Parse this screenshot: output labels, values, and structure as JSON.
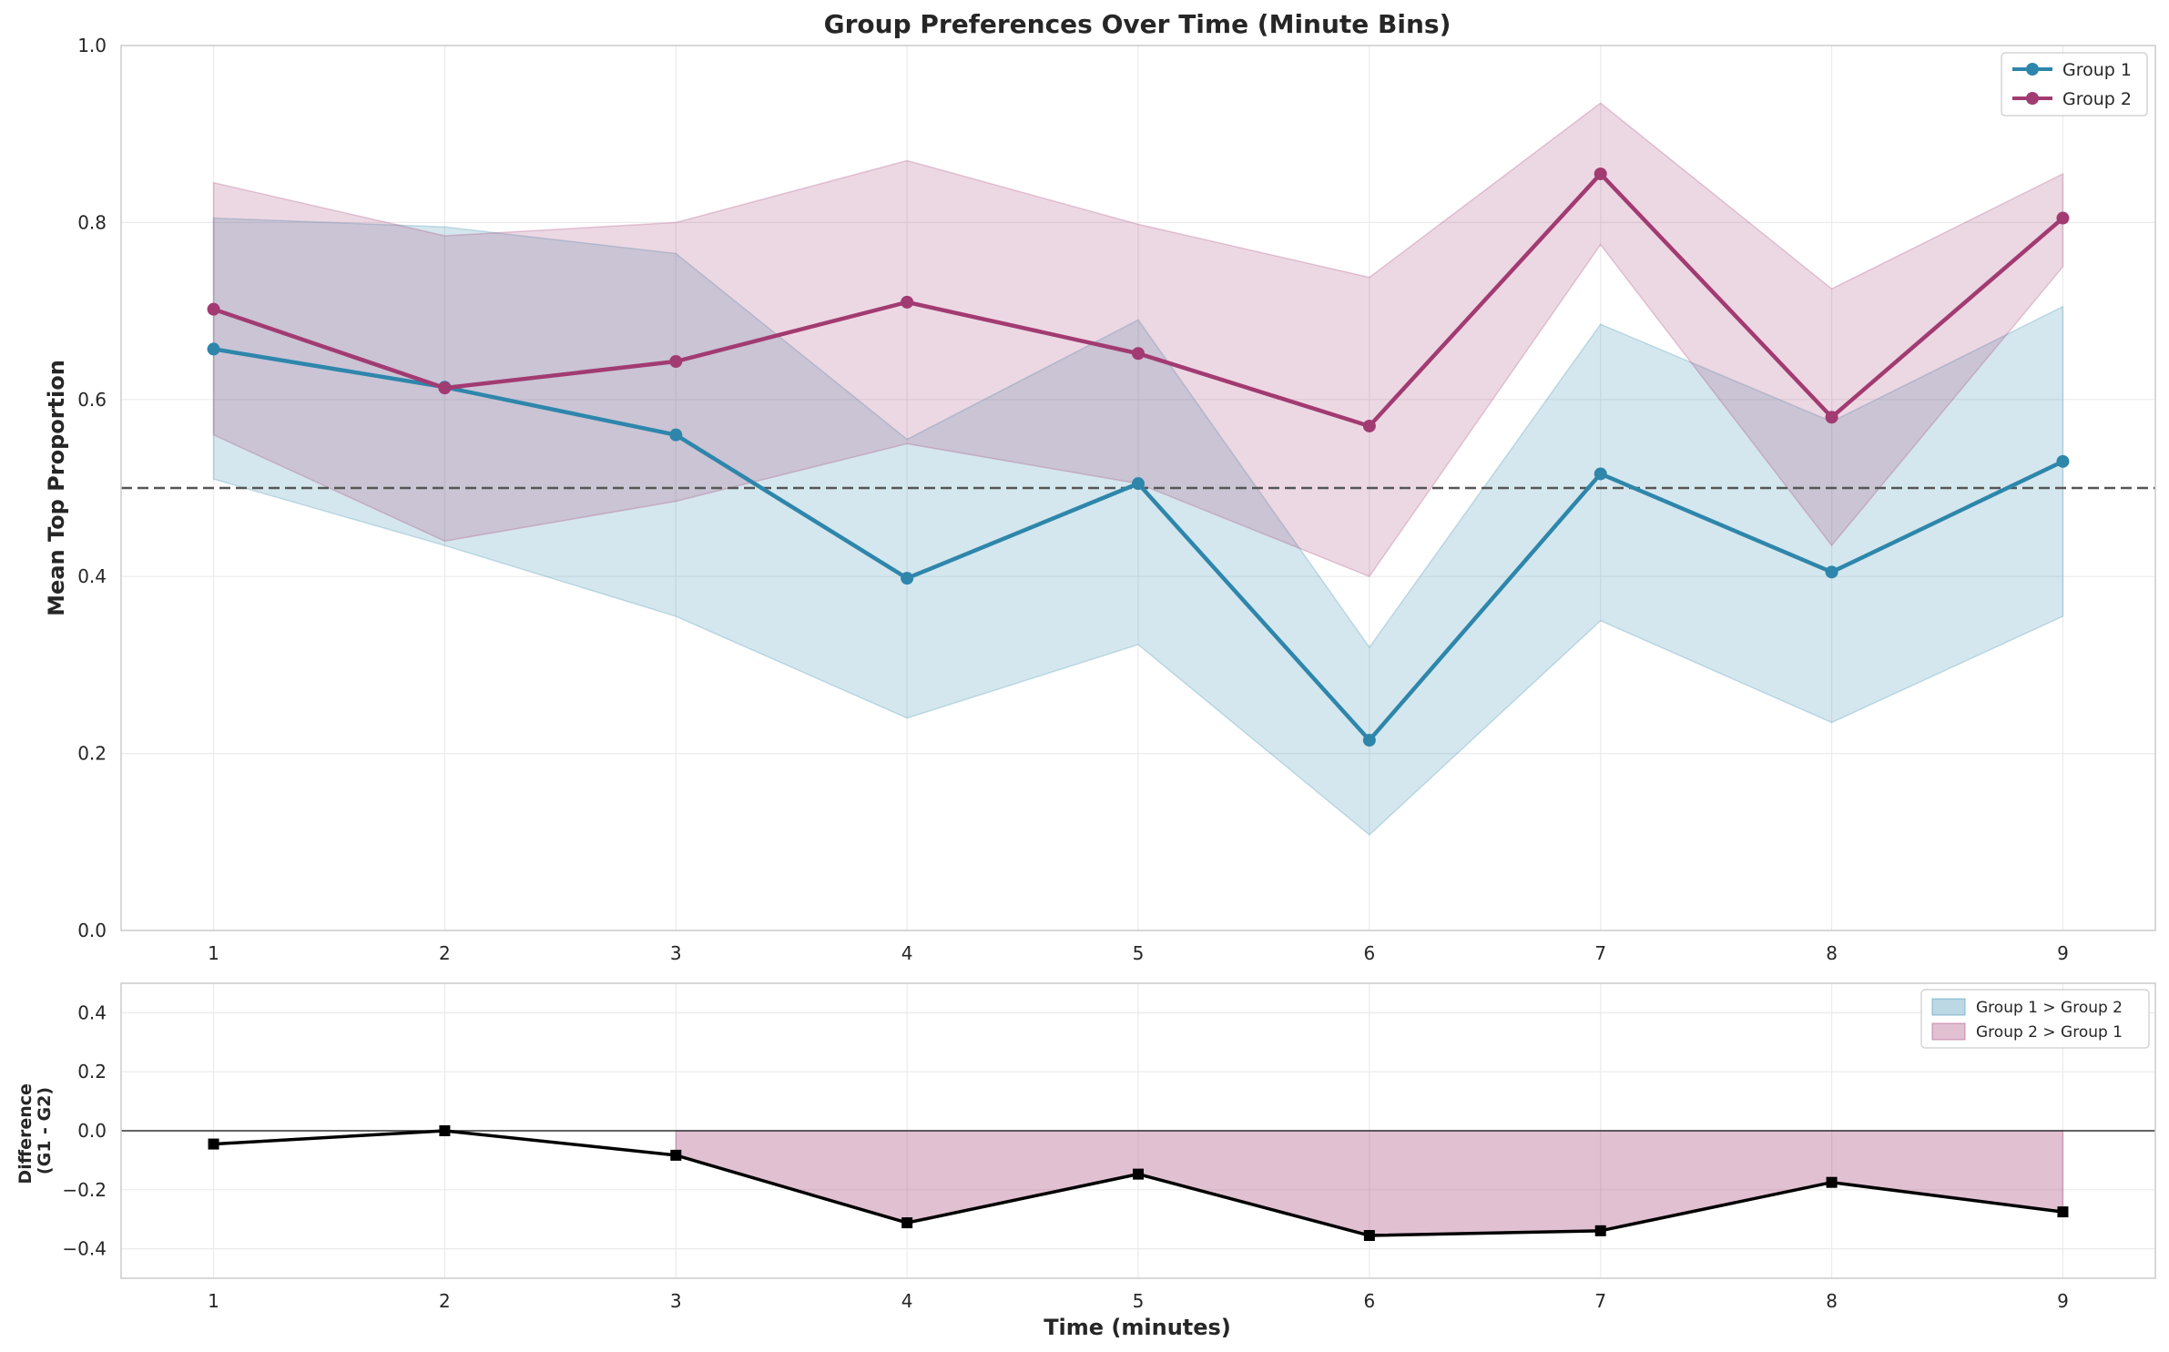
{
  "chart_data": [
    {
      "type": "line",
      "title": "Group Preferences Over Time (Minute Bins)",
      "xlabel": "",
      "ylabel": "Mean Top Proportion",
      "x": [
        1,
        2,
        3,
        4,
        5,
        6,
        7,
        8,
        9
      ],
      "xlim": [
        0.6,
        9.4
      ],
      "ylim": [
        0,
        1
      ],
      "yticks": [
        "0.0",
        "0.2",
        "0.4",
        "0.6",
        "0.8",
        "1.0"
      ],
      "xticks": [
        "1",
        "2",
        "3",
        "4",
        "5",
        "6",
        "7",
        "8",
        "9"
      ],
      "grid": true,
      "legend": "top-right",
      "reference_line": {
        "y": 0.5,
        "style": "dashed"
      },
      "series": [
        {
          "name": "Group 1",
          "color": "#2E86AB",
          "values": [
            0.657,
            0.614,
            0.56,
            0.398,
            0.505,
            0.215,
            0.516,
            0.405,
            0.53
          ],
          "band_lower": [
            0.51,
            0.435,
            0.355,
            0.24,
            0.323,
            0.108,
            0.35,
            0.235,
            0.355
          ],
          "band_upper": [
            0.805,
            0.795,
            0.765,
            0.555,
            0.69,
            0.32,
            0.685,
            0.575,
            0.705
          ]
        },
        {
          "name": "Group 2",
          "color": "#A23B72",
          "values": [
            0.702,
            0.613,
            0.643,
            0.71,
            0.652,
            0.57,
            0.855,
            0.58,
            0.805
          ],
          "band_lower": [
            0.56,
            0.44,
            0.485,
            0.55,
            0.505,
            0.4,
            0.775,
            0.435,
            0.75
          ],
          "band_upper": [
            0.845,
            0.785,
            0.8,
            0.87,
            0.798,
            0.738,
            0.935,
            0.725,
            0.855
          ]
        }
      ]
    },
    {
      "type": "area",
      "title": "",
      "xlabel": "Time (minutes)",
      "ylabel": "Difference\n(G1 - G2)",
      "ylabel_lines": [
        "Difference",
        "(G1 - G2)"
      ],
      "x": [
        1,
        2,
        3,
        4,
        5,
        6,
        7,
        8,
        9
      ],
      "xlim": [
        0.6,
        9.4
      ],
      "ylim": [
        -0.5,
        0.5
      ],
      "yticks": [
        "−0.4",
        "−0.2",
        "0.0",
        "0.2",
        "0.4"
      ],
      "ytick_values": [
        -0.4,
        -0.2,
        0.0,
        0.2,
        0.4
      ],
      "xticks": [
        "1",
        "2",
        "3",
        "4",
        "5",
        "6",
        "7",
        "8",
        "9"
      ],
      "grid": true,
      "legend": "top-right",
      "series": [
        {
          "name": "",
          "color": "#000000",
          "values": [
            -0.045,
            0.0,
            -0.083,
            -0.312,
            -0.147,
            -0.355,
            -0.339,
            -0.175,
            -0.275
          ]
        }
      ],
      "fill_legend": [
        {
          "name": "Group 1 > Group 2",
          "color": "#2E86AB"
        },
        {
          "name": "Group 2 > Group 1",
          "color": "#A23B72"
        }
      ]
    }
  ]
}
